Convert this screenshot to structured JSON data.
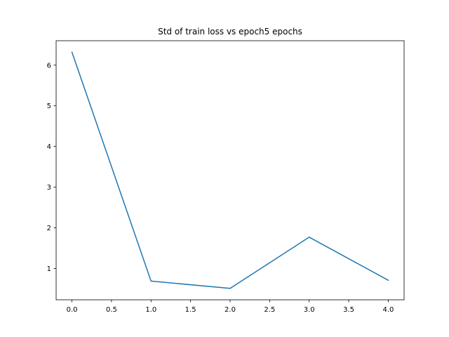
{
  "chart_data": {
    "type": "line",
    "title": "Std of train loss vs epoch5 epochs",
    "xlabel": "",
    "ylabel": "",
    "x": [
      0,
      1,
      2,
      3,
      4
    ],
    "series": [
      {
        "values": [
          6.32,
          0.69,
          0.51,
          1.77,
          0.71
        ],
        "color": "#1f77b4"
      }
    ],
    "xlim": [
      -0.2,
      4.2
    ],
    "ylim": [
      0.23,
      6.6
    ],
    "xticks": [
      0.0,
      0.5,
      1.0,
      1.5,
      2.0,
      2.5,
      3.0,
      3.5,
      4.0
    ],
    "xtick_labels": [
      "0.0",
      "0.5",
      "1.0",
      "1.5",
      "2.0",
      "2.5",
      "3.0",
      "3.5",
      "4.0"
    ],
    "yticks": [
      1,
      2,
      3,
      4,
      5,
      6
    ],
    "ytick_labels": [
      "1",
      "2",
      "3",
      "4",
      "5",
      "6"
    ],
    "grid": false,
    "legend": "none"
  }
}
